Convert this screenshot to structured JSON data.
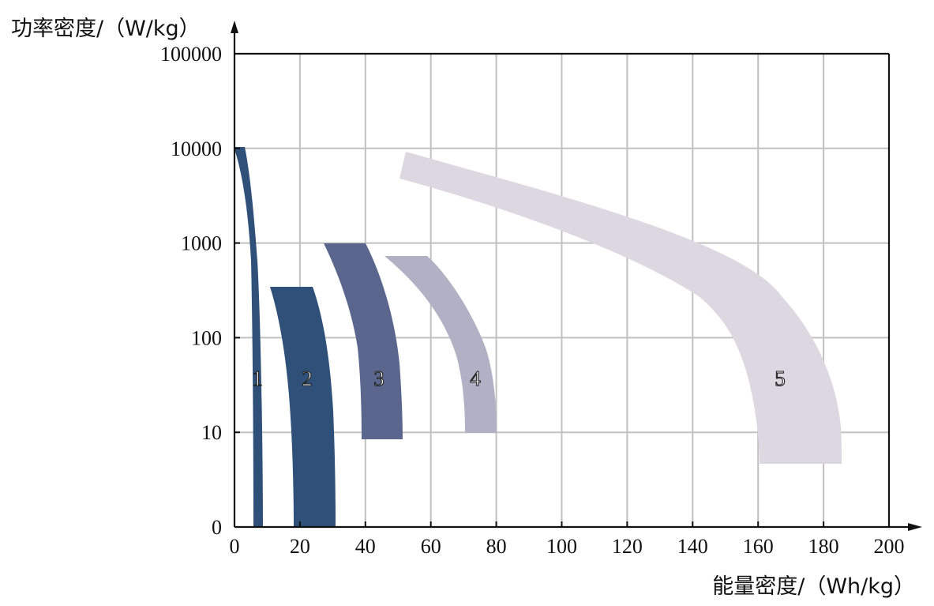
{
  "chart_data": {
    "type": "area",
    "title": "",
    "ylabel": "功率密度/（W/kg）",
    "xlabel": "能量密度/（Wh/kg）",
    "x_ticks": [
      "0",
      "20",
      "40",
      "60",
      "80",
      "100",
      "120",
      "140",
      "160",
      "180",
      "200"
    ],
    "y_ticks": [
      "0",
      "10",
      "100",
      "1000",
      "10000",
      "100000"
    ],
    "xlim": [
      0,
      200
    ],
    "y_scale": "log",
    "grid": true,
    "colors": {
      "region1": "#2e5079",
      "region2": "#2e5079",
      "region3": "#5b668e",
      "region4": "#b2b0c4",
      "region5": "#dbd8e1",
      "grid": "#c0c0c0"
    },
    "regions": [
      {
        "label": "1",
        "energy_wh_per_kg": [
          0,
          8.5
        ],
        "power_w_per_kg": [
          1,
          10000
        ]
      },
      {
        "label": "2",
        "energy_wh_per_kg": [
          11,
          31
        ],
        "power_w_per_kg": [
          1,
          350
        ]
      },
      {
        "label": "3",
        "energy_wh_per_kg": [
          28,
          52
        ],
        "power_w_per_kg": [
          8,
          1000
        ]
      },
      {
        "label": "4",
        "energy_wh_per_kg": [
          46,
          80
        ],
        "power_w_per_kg": [
          10,
          750
        ]
      },
      {
        "label": "5",
        "energy_wh_per_kg": [
          51,
          186
        ],
        "power_w_per_kg": [
          5,
          9000
        ]
      }
    ]
  }
}
